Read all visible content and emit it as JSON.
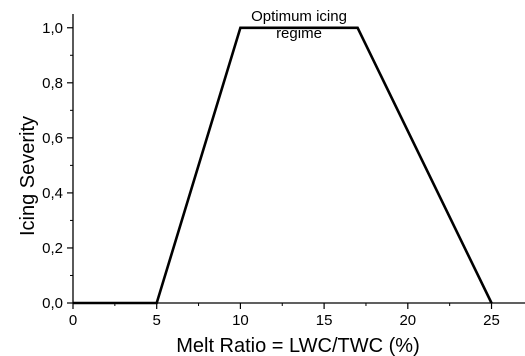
{
  "chart_data": {
    "type": "line",
    "title": "",
    "xlabel": "Melt Ratio = LWC/TWC (%)",
    "ylabel": "Icing Severity",
    "xlim": [
      0,
      27
    ],
    "ylim": [
      0,
      1.05
    ],
    "grid": false,
    "x_ticks": [
      0,
      5,
      10,
      15,
      20,
      25
    ],
    "x_tick_labels": [
      "0",
      "5",
      "10",
      "15",
      "20",
      "25"
    ],
    "y_ticks": [
      0,
      0.2,
      0.4,
      0.6,
      0.8,
      1.0
    ],
    "y_tick_labels": [
      "0,0",
      "0,2",
      "0,4",
      "0,6",
      "0,8",
      "1,0"
    ],
    "series": [
      {
        "x": [
          0,
          5,
          10,
          17,
          25
        ],
        "y": [
          0,
          0,
          1.0,
          1.0,
          0
        ]
      }
    ],
    "annotations": [
      {
        "lines": [
          "Optimum icing",
          "regime"
        ],
        "x": 13.5,
        "y": 1.0
      }
    ]
  }
}
